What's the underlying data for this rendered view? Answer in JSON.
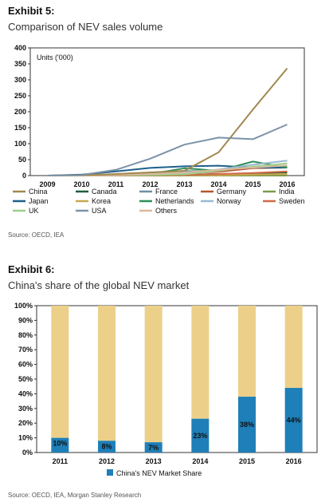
{
  "exhibit5": {
    "label": "Exhibit 5:",
    "title": "Comparison of NEV sales volume",
    "source": "Source: OECD, IEA"
  },
  "exhibit6": {
    "label": "Exhibit 6:",
    "title": "China's share of the global NEV market",
    "source": "Source: OECD, IEA, Morgan Stanley Research"
  },
  "chart_data": [
    {
      "type": "line",
      "title": "",
      "annotation": "Units ('000)",
      "x": [
        "2009",
        "2010",
        "2011",
        "2012",
        "2013",
        "2014",
        "2015",
        "2016"
      ],
      "ylim": [
        0,
        400
      ],
      "yticks": [
        0,
        50,
        100,
        150,
        200,
        250,
        300,
        350,
        400
      ],
      "grid": false,
      "legend": "bottom",
      "series": [
        {
          "name": "China",
          "color": "#a08850",
          "values": [
            0,
            1,
            5,
            10,
            15,
            73,
            207,
            336
          ]
        },
        {
          "name": "Canada",
          "color": "#1e5c3c",
          "values": [
            0,
            0,
            1,
            2,
            3,
            5,
            7,
            10
          ]
        },
        {
          "name": "France",
          "color": "#6d8fa6",
          "values": [
            0,
            0,
            3,
            9,
            14,
            15,
            27,
            30
          ]
        },
        {
          "name": "Germany",
          "color": "#b5552d",
          "values": [
            0,
            0,
            2,
            4,
            7,
            12,
            23,
            25
          ]
        },
        {
          "name": "India",
          "color": "#7d9a4a",
          "values": [
            0,
            0,
            0,
            0,
            0,
            0,
            0,
            0
          ]
        },
        {
          "name": "Japan",
          "color": "#1f5f8b",
          "values": [
            0,
            3,
            13,
            24,
            29,
            31,
            25,
            25
          ]
        },
        {
          "name": "Korea",
          "color": "#c8a850",
          "values": [
            0,
            0,
            0,
            1,
            1,
            1,
            3,
            5
          ]
        },
        {
          "name": "Netherlands",
          "color": "#2f8f5a",
          "values": [
            0,
            0,
            1,
            5,
            23,
            15,
            44,
            25
          ]
        },
        {
          "name": "Norway",
          "color": "#9ab9d1",
          "values": [
            0,
            0,
            2,
            4,
            8,
            19,
            34,
            47
          ]
        },
        {
          "name": "Sweden",
          "color": "#d2694a",
          "values": [
            0,
            0,
            0,
            1,
            2,
            5,
            8,
            13
          ]
        },
        {
          "name": "UK",
          "color": "#9ccf8a",
          "values": [
            0,
            0,
            1,
            2,
            4,
            15,
            28,
            38
          ]
        },
        {
          "name": "USA",
          "color": "#7c93a8",
          "values": [
            0,
            2,
            18,
            53,
            97,
            119,
            114,
            160
          ]
        },
        {
          "name": "Others",
          "color": "#d9b99b",
          "values": [
            0,
            0,
            2,
            5,
            10,
            18,
            25,
            32
          ]
        }
      ]
    },
    {
      "type": "bar",
      "title": "",
      "categories": [
        "2011",
        "2012",
        "2013",
        "2014",
        "2015",
        "2016"
      ],
      "ylim": [
        0,
        100
      ],
      "yticks": [
        "0%",
        "10%",
        "20%",
        "30%",
        "40%",
        "50%",
        "60%",
        "70%",
        "80%",
        "90%",
        "100%"
      ],
      "grid": false,
      "legend": "bottom",
      "series": [
        {
          "name": "China's NEV Market Share",
          "color": "#1f7fb8",
          "values": [
            10,
            8,
            7,
            23,
            38,
            44
          ],
          "labels": [
            "10%",
            "8%",
            "7%",
            "23%",
            "38%",
            "44%"
          ]
        },
        {
          "name": "",
          "color": "#ecd089",
          "values": [
            90,
            92,
            93,
            77,
            62,
            56
          ]
        }
      ]
    }
  ]
}
